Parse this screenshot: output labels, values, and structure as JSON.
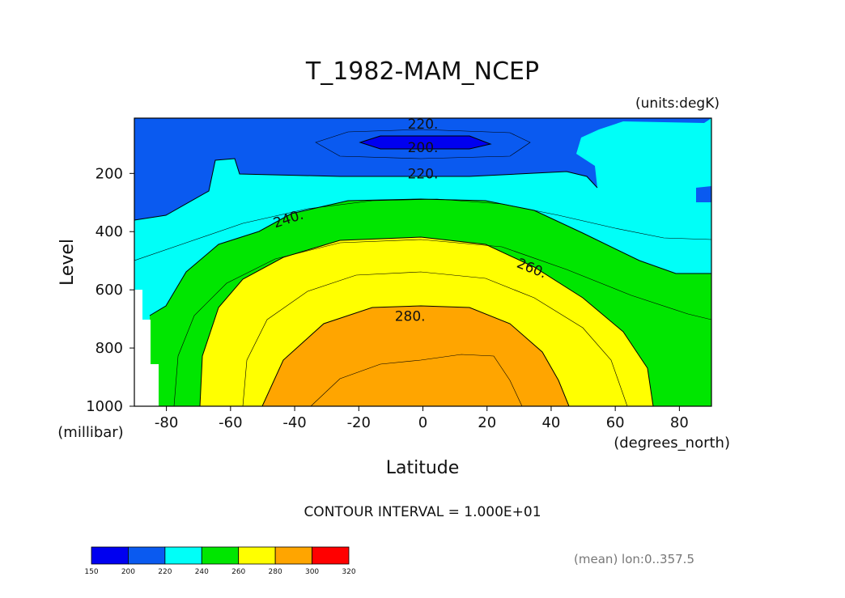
{
  "chart_data": {
    "type": "heatmap",
    "title": "T_1982-MAM_NCEP",
    "units_note": "(units:degK)",
    "xlabel": "Latitude",
    "x_units": "(degrees_north)",
    "ylabel": "Level",
    "y_units": "(millibar)",
    "xlim": [
      -90,
      90
    ],
    "ylim": [
      1000,
      10
    ],
    "x_ticks": [
      "-80",
      "-60",
      "-40",
      "-20",
      "0",
      "20",
      "40",
      "60",
      "80"
    ],
    "x_tick_values": [
      -80,
      -60,
      -40,
      -20,
      0,
      20,
      40,
      60,
      80
    ],
    "y_ticks": [
      "200",
      "400",
      "600",
      "800",
      "1000"
    ],
    "y_tick_values": [
      200,
      400,
      600,
      800,
      1000
    ],
    "contour_interval_text": "CONTOUR INTERVAL = 1.000E+01",
    "contour_labels": [
      {
        "text": "220.",
        "lat": 0,
        "lev": 30
      },
      {
        "text": "200.",
        "lat": 0,
        "lev": 110
      },
      {
        "text": "220.",
        "lat": 0,
        "lev": 200
      },
      {
        "text": "240.",
        "lat": -42,
        "lev": 355
      },
      {
        "text": "260.",
        "lat": 34,
        "lev": 525
      },
      {
        "text": "280.",
        "lat": -4,
        "lev": 690
      }
    ],
    "fill_levels": [
      {
        "range": "150-200",
        "color": "#0000f0"
      },
      {
        "range": "200-220",
        "color": "#0a5af0"
      },
      {
        "range": "220-240",
        "color": "#00fff8"
      },
      {
        "range": "240-260",
        "color": "#00e600"
      },
      {
        "range": "260-280",
        "color": "#ffff00"
      },
      {
        "range": "280-300",
        "color": "#ffa500"
      },
      {
        "range": "300-320",
        "color": "#ff0000"
      }
    ],
    "colorbar_ticks": [
      "150",
      "200",
      "220",
      "240",
      "260",
      "280",
      "300",
      "320"
    ]
  },
  "footer": "(mean) lon:0..357.5"
}
